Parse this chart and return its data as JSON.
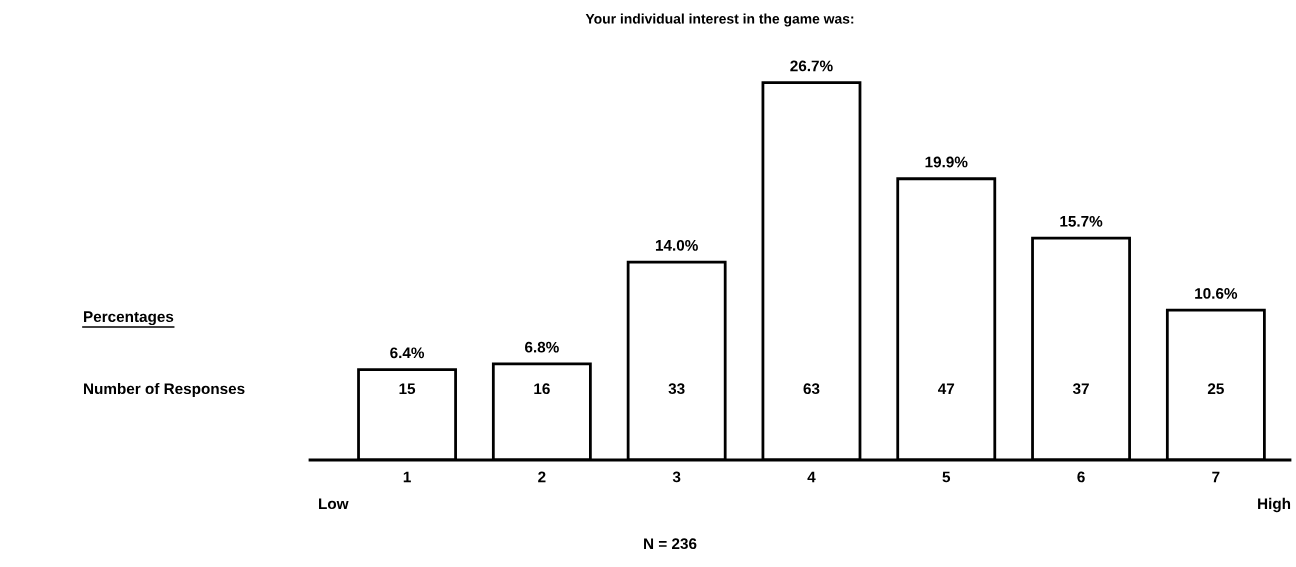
{
  "chart_data": {
    "type": "bar",
    "title": "Your individual interest in the game was:",
    "categories": [
      "1",
      "2",
      "3",
      "4",
      "5",
      "6",
      "7"
    ],
    "values": [
      6.4,
      6.8,
      14.0,
      26.7,
      19.9,
      15.7,
      10.6
    ],
    "value_labels": [
      "6.4%",
      "6.8%",
      "14.0%",
      "26.7%",
      "19.9%",
      "15.7%",
      "10.6%"
    ],
    "color": "#ffffff",
    "annotations": [
      "Percentages",
      "Number of Responses",
      "Low",
      "High",
      "N = 236",
      "15",
      "16",
      "33",
      "63",
      "47",
      "37",
      "25"
    ],
    "grid": false,
    "legend": false
  }
}
